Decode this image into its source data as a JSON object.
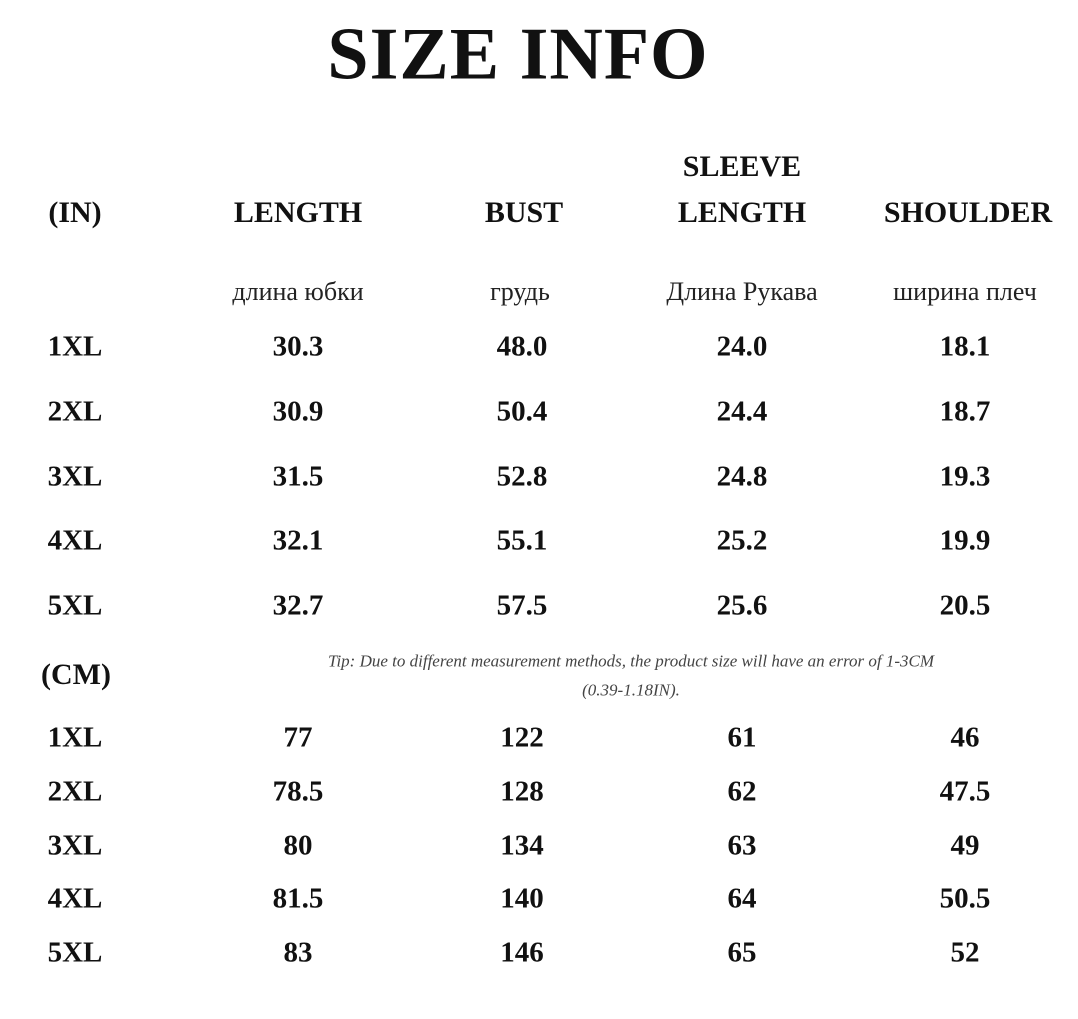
{
  "title": "SIZE INFO",
  "inch_section": {
    "unit_label": "(IN)",
    "headers": [
      "LENGTH",
      "BUST",
      "SLEEVE LENGTH",
      "SHOULDER"
    ],
    "headers_ru": [
      "длина юбки",
      "грудь",
      "Длина Рукава",
      "ширина плеч"
    ],
    "rows": [
      {
        "size": "1XL",
        "values": [
          "30.3",
          "48.0",
          "24.0",
          "18.1"
        ]
      },
      {
        "size": "2XL",
        "values": [
          "30.9",
          "50.4",
          "24.4",
          "18.7"
        ]
      },
      {
        "size": "3XL",
        "values": [
          "31.5",
          "52.8",
          "24.8",
          "19.3"
        ]
      },
      {
        "size": "4XL",
        "values": [
          "32.1",
          "55.1",
          "25.2",
          "19.9"
        ]
      },
      {
        "size": "5XL",
        "values": [
          "32.7",
          "57.5",
          "25.6",
          "20.5"
        ]
      }
    ]
  },
  "cm_section": {
    "unit_label": "(CM)",
    "tip_line1": "Tip: Due to different measurement methods, the product size will have an error of 1-3CM",
    "tip_line2": "(0.39-1.18IN).",
    "rows": [
      {
        "size": "1XL",
        "values": [
          "77",
          "122",
          "61",
          "46"
        ]
      },
      {
        "size": "2XL",
        "values": [
          "78.5",
          "128",
          "62",
          "47.5"
        ]
      },
      {
        "size": "3XL",
        "values": [
          "80",
          "134",
          "63",
          "49"
        ]
      },
      {
        "size": "4XL",
        "values": [
          "81.5",
          "140",
          "64",
          "50.5"
        ]
      },
      {
        "size": "5XL",
        "values": [
          "83",
          "146",
          "65",
          "52"
        ]
      }
    ]
  }
}
